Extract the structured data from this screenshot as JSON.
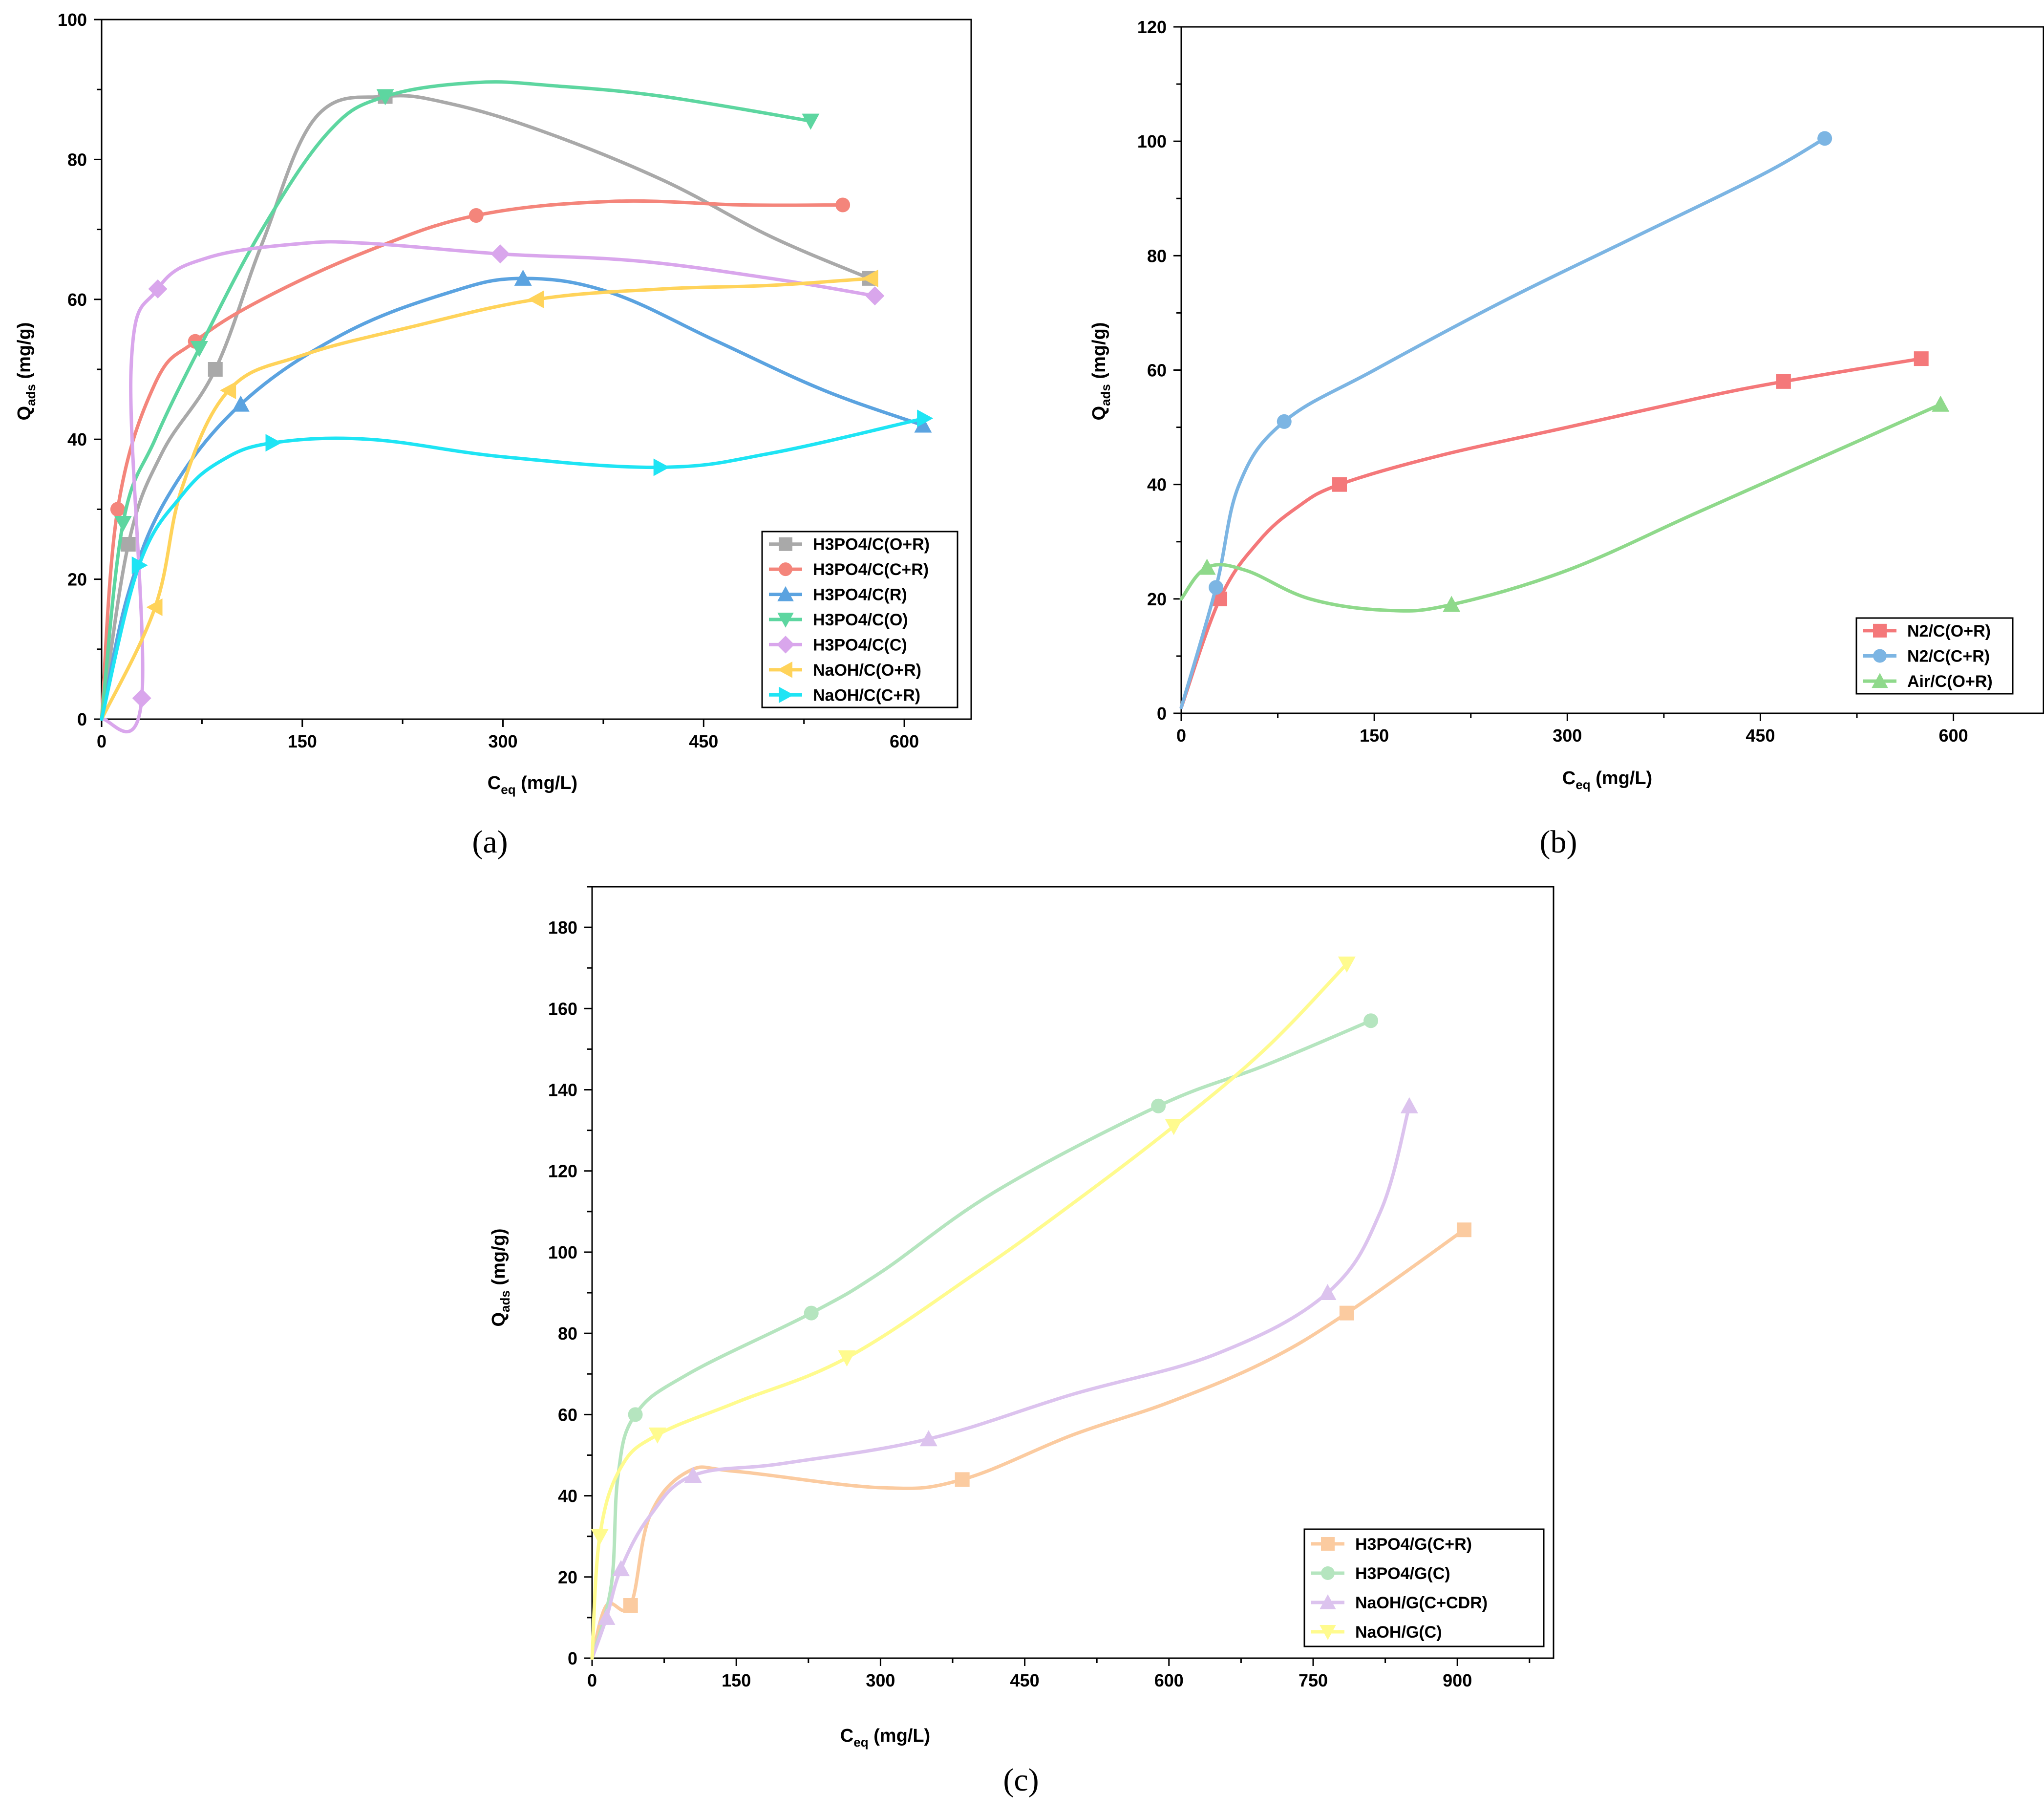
{
  "chart_data": [
    {
      "panel": "a",
      "panel_label": "(a)",
      "type": "line",
      "xlabel": "C",
      "xlabel_sub": "eq",
      "xlabel_unit": " (mg/L)",
      "ylabel": "Q",
      "ylabel_sub": "ads",
      "ylabel_unit": " (mg/g)",
      "xlim": [
        0,
        650
      ],
      "ylim": [
        0,
        100
      ],
      "xticks": [
        0,
        150,
        300,
        450,
        600
      ],
      "yticks": [
        0,
        20,
        40,
        60,
        80,
        100
      ],
      "legend_position": "bottom-right",
      "series": [
        {
          "name": "H3PO4/C(O+R)",
          "color": "#a9a9a9",
          "marker": "square",
          "x": [
            0,
            20,
            45,
            85,
            120,
            160,
            212,
            260,
            330,
            420,
            500,
            574
          ],
          "y": [
            0,
            25,
            38,
            50,
            68,
            86,
            89,
            88,
            84,
            77,
            69,
            63
          ],
          "marker_idx": [
            1,
            3,
            6,
            11
          ]
        },
        {
          "name": "H3PO4/C(C+R)",
          "color": "#f4857b",
          "marker": "circle",
          "x": [
            0,
            12,
            40,
            70,
            120,
            200,
            280,
            380,
            480,
            554
          ],
          "y": [
            0,
            30,
            48,
            54,
            60,
            67,
            72,
            74,
            73.5,
            73.5
          ],
          "marker_idx": [
            1,
            3,
            6,
            9
          ]
        },
        {
          "name": "H3PO4/C(R)",
          "color": "#5ba3e0",
          "marker": "triangle-up",
          "x": [
            0,
            20,
            50,
            104,
            180,
            260,
            315,
            380,
            460,
            540,
            614
          ],
          "y": [
            0,
            18,
            32,
            45,
            55,
            61,
            63,
            61,
            54,
            47,
            42
          ],
          "marker_idx": [
            3,
            6,
            10
          ]
        },
        {
          "name": "H3PO4/C(O)",
          "color": "#5dd6a0",
          "marker": "triangle-down",
          "x": [
            0,
            16,
            40,
            73,
            120,
            170,
            212,
            280,
            340,
            420,
            530
          ],
          "y": [
            0,
            28,
            40,
            53,
            70,
            84,
            89,
            91,
            90.5,
            89,
            85.5
          ],
          "marker_idx": [
            1,
            3,
            6,
            10
          ]
        },
        {
          "name": "H3PO4/C(C)",
          "color": "#d9a6ec",
          "marker": "diamond",
          "x": [
            0,
            30,
            22,
            42,
            80,
            150,
            200,
            298,
            400,
            500,
            578
          ],
          "y": [
            0,
            3,
            50,
            61.5,
            66,
            68,
            68,
            66.5,
            65.5,
            63,
            60.5
          ],
          "marker_idx": [
            1,
            3,
            7,
            10
          ]
        },
        {
          "name": "NaOH/C(O+R)",
          "color": "#ffd35a",
          "marker": "triangle-left",
          "x": [
            0,
            40,
            60,
            95,
            150,
            230,
            325,
            420,
            500,
            575
          ],
          "y": [
            0,
            16,
            33,
            47,
            52,
            56,
            60,
            61.5,
            62,
            63
          ],
          "marker_idx": [
            1,
            3,
            6,
            9
          ]
        },
        {
          "name": "NaOH/C(C+R)",
          "color": "#1ee4f4",
          "marker": "triangle-right",
          "x": [
            0,
            28,
            60,
            90,
            128,
            200,
            300,
            418,
            500,
            615
          ],
          "y": [
            0,
            22,
            32,
            37,
            39.5,
            40,
            37.5,
            36,
            38,
            43
          ],
          "marker_idx": [
            1,
            4,
            7,
            9
          ]
        }
      ]
    },
    {
      "panel": "b",
      "panel_label": "(b)",
      "type": "line",
      "xlabel": "C",
      "xlabel_sub": "eq",
      "xlabel_unit": " (mg/L)",
      "ylabel": "Q",
      "ylabel_sub": "ads",
      "ylabel_unit": " (mg/g)",
      "xlim": [
        0,
        670
      ],
      "ylim": [
        0,
        120
      ],
      "xticks": [
        0,
        150,
        300,
        450,
        600
      ],
      "yticks": [
        0,
        20,
        40,
        60,
        80,
        100,
        120
      ],
      "legend_position": "bottom-right",
      "series": [
        {
          "name": "N2/C(O+R)",
          "color": "#f4787a",
          "marker": "square",
          "x": [
            0,
            30,
            60,
            90,
            123,
            200,
            300,
            400,
            468,
            575
          ],
          "y": [
            1,
            20,
            30,
            36,
            40,
            45,
            50,
            55,
            58,
            62
          ],
          "marker_idx": [
            1,
            4,
            8,
            9
          ]
        },
        {
          "name": "N2/C(C+R)",
          "color": "#7cb5e3",
          "marker": "circle",
          "x": [
            0,
            27,
            45,
            80,
            150,
            250,
            350,
            450,
            500
          ],
          "y": [
            1,
            22,
            40,
            51,
            60,
            72,
            83,
            94,
            100.5
          ],
          "marker_idx": [
            1,
            3,
            8
          ]
        },
        {
          "name": "Air/C(O+R)",
          "color": "#8fd98b",
          "marker": "triangle-up",
          "x": [
            0,
            20,
            50,
            100,
            160,
            210,
            300,
            400,
            500,
            590
          ],
          "y": [
            20,
            25.5,
            25,
            20,
            18,
            19,
            25,
            35,
            45,
            54
          ],
          "marker_idx": [
            1,
            5,
            9
          ]
        }
      ]
    },
    {
      "panel": "c",
      "panel_label": "(c)",
      "type": "line",
      "xlabel": "C",
      "xlabel_sub": "eq",
      "xlabel_unit": " (mg/L)",
      "ylabel": "Q",
      "ylabel_sub": "ads",
      "ylabel_unit": " (mg/g)",
      "xlim": [
        0,
        1000
      ],
      "ylim": [
        0,
        190
      ],
      "xticks": [
        0,
        150,
        300,
        450,
        600,
        750,
        900
      ],
      "yticks": [
        0,
        20,
        40,
        60,
        80,
        100,
        120,
        140,
        160,
        180
      ],
      "legend_position": "bottom-right",
      "series": [
        {
          "name": "H3PO4/G(C+R)",
          "color": "#fbcba0",
          "marker": "square",
          "x": [
            0,
            15,
            40,
            60,
            100,
            150,
            300,
            385,
            500,
            600,
            700,
            785,
            907
          ],
          "y": [
            0,
            13,
            13,
            35,
            46,
            46,
            42,
            44,
            55,
            63,
            73,
            85,
            105.5
          ],
          "marker_idx": [
            2,
            7,
            11,
            12
          ]
        },
        {
          "name": "H3PO4/G(C)",
          "color": "#b5e5bf",
          "marker": "circle",
          "x": [
            0,
            20,
            27,
            45,
            100,
            228,
            300,
            420,
            589,
            700,
            810
          ],
          "y": [
            0,
            18,
            45,
            60,
            70,
            85,
            95,
            115,
            136,
            146,
            157
          ],
          "marker_idx": [
            3,
            5,
            8,
            10
          ]
        },
        {
          "name": "NaOH/G(C+CDR)",
          "color": "#dcc3ee",
          "marker": "triangle-up",
          "x": [
            0,
            15,
            30,
            60,
            105,
            200,
            350,
            500,
            650,
            765,
            820,
            850
          ],
          "y": [
            0,
            10,
            22,
            35,
            45,
            48,
            54,
            65,
            75,
            90,
            110,
            136
          ],
          "marker_idx": [
            1,
            2,
            4,
            6,
            9,
            11
          ]
        },
        {
          "name": "NaOH/G(C)",
          "color": "#fffb8e",
          "marker": "triangle-down",
          "x": [
            0,
            8,
            30,
            68,
            150,
            265,
            400,
            500,
            605,
            700,
            785
          ],
          "y": [
            0,
            30,
            47,
            55,
            63,
            74,
            95,
            112,
            131,
            150,
            171
          ],
          "marker_idx": [
            1,
            3,
            5,
            8,
            10
          ]
        }
      ]
    }
  ]
}
